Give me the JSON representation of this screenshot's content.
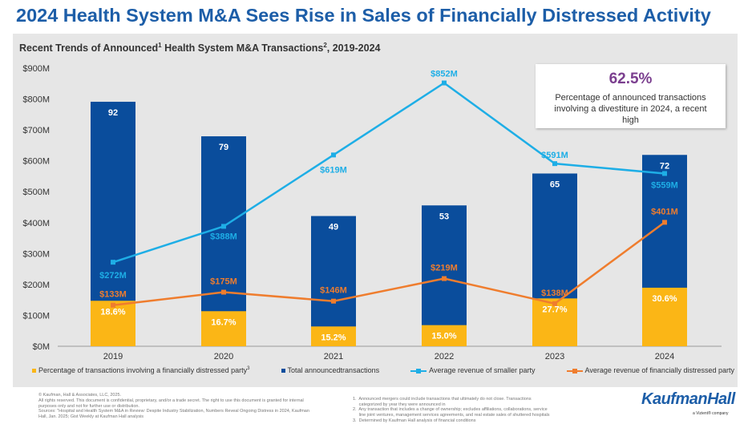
{
  "title": "2024 Health System M&A Sees Rise in Sales of Financially Distressed Activity",
  "subtitle": {
    "pre": "Recent Trends of Announced",
    "sup1": "1",
    "mid": " Health System M&A Transactions",
    "sup2": "2",
    "post": ", 2019-2024"
  },
  "callout": {
    "value": "62.5%",
    "text": "Percentage of announced transactions involving a divestiture in 2024, a recent high"
  },
  "legend": {
    "pct": "Percentage of transactions involving a financially distressed party",
    "pct_sup": "3",
    "total": "Total announcedtransactions",
    "smaller": "Average revenue of smaller party",
    "distressed": "Average revenue of financially distressed party"
  },
  "footer": {
    "left": [
      "© Kaufman, Hall & Associates, LLC, 2025.",
      "All rights reserved. This document is confidential, proprietary, and/or a trade secret. The right to use this document is granted for internal",
      "purposes only and not for further use or distribution.",
      "Sources: \"Hospital and Health System M&A in Review: Despite Industry Stabilization, Numbers Reveal Ongoing Distress in 2024, Kaufman",
      "Hall, Jan. 2025; Gist Weekly at Kaufman Hall analysis"
    ],
    "notes": [
      "1.  Announced mergers could include transactions that ultimately do not close. Transactions",
      "     categorized by year they were announced in",
      "2.  Any transaction that includes a change of ownership; excludes affiliations, collaborations, service",
      "     line joint ventures, management services agreements, and real estate sales of shuttered hospitals",
      "3.  Determined by Kaufman Hall analysis of financial conditions"
    ],
    "logo": "KaufmanHall",
    "logo_sub": "a Vizient® company"
  },
  "chart_data": {
    "type": "bar",
    "categories": [
      "2019",
      "2020",
      "2021",
      "2022",
      "2023",
      "2024"
    ],
    "ylim": [
      0,
      900
    ],
    "yticks": [
      "$0M",
      "$100M",
      "$200M",
      "$300M",
      "$400M",
      "$500M",
      "$600M",
      "$700M",
      "$800M",
      "$900M"
    ],
    "grid": false,
    "legend_placement": "bottom",
    "colors": {
      "total": "#0a4d9c",
      "pct": "#fbb616",
      "smaller": "#1eaee6",
      "distressed": "#ef7d2e"
    },
    "series": [
      {
        "name": "Total announcedtransactions",
        "kind": "stacked-bar",
        "values": [
          92,
          79,
          49,
          53,
          65,
          72
        ],
        "labels": [
          "92",
          "79",
          "49",
          "53",
          "65",
          "72"
        ]
      },
      {
        "name": "Percentage of transactions involving a financially distressed party",
        "kind": "stacked-bar",
        "values": [
          18.6,
          16.7,
          15.2,
          15.0,
          27.7,
          30.6
        ],
        "labels": [
          "18.6%",
          "16.7%",
          "15.2%",
          "15.0%",
          "27.7%",
          "30.6%"
        ]
      },
      {
        "name": "Average revenue of smaller party",
        "kind": "line",
        "values": [
          272,
          388,
          619,
          852,
          591,
          559
        ],
        "labels": [
          "$272M",
          "$388M",
          "$619M",
          "$852M",
          "$591M",
          "$559M"
        ]
      },
      {
        "name": "Average revenue of financially distressed party",
        "kind": "line",
        "values": [
          133,
          175,
          146,
          219,
          138,
          401
        ],
        "labels": [
          "$133M",
          "$175M",
          "$146M",
          "$219M",
          "$138M",
          "$401M"
        ]
      }
    ]
  }
}
